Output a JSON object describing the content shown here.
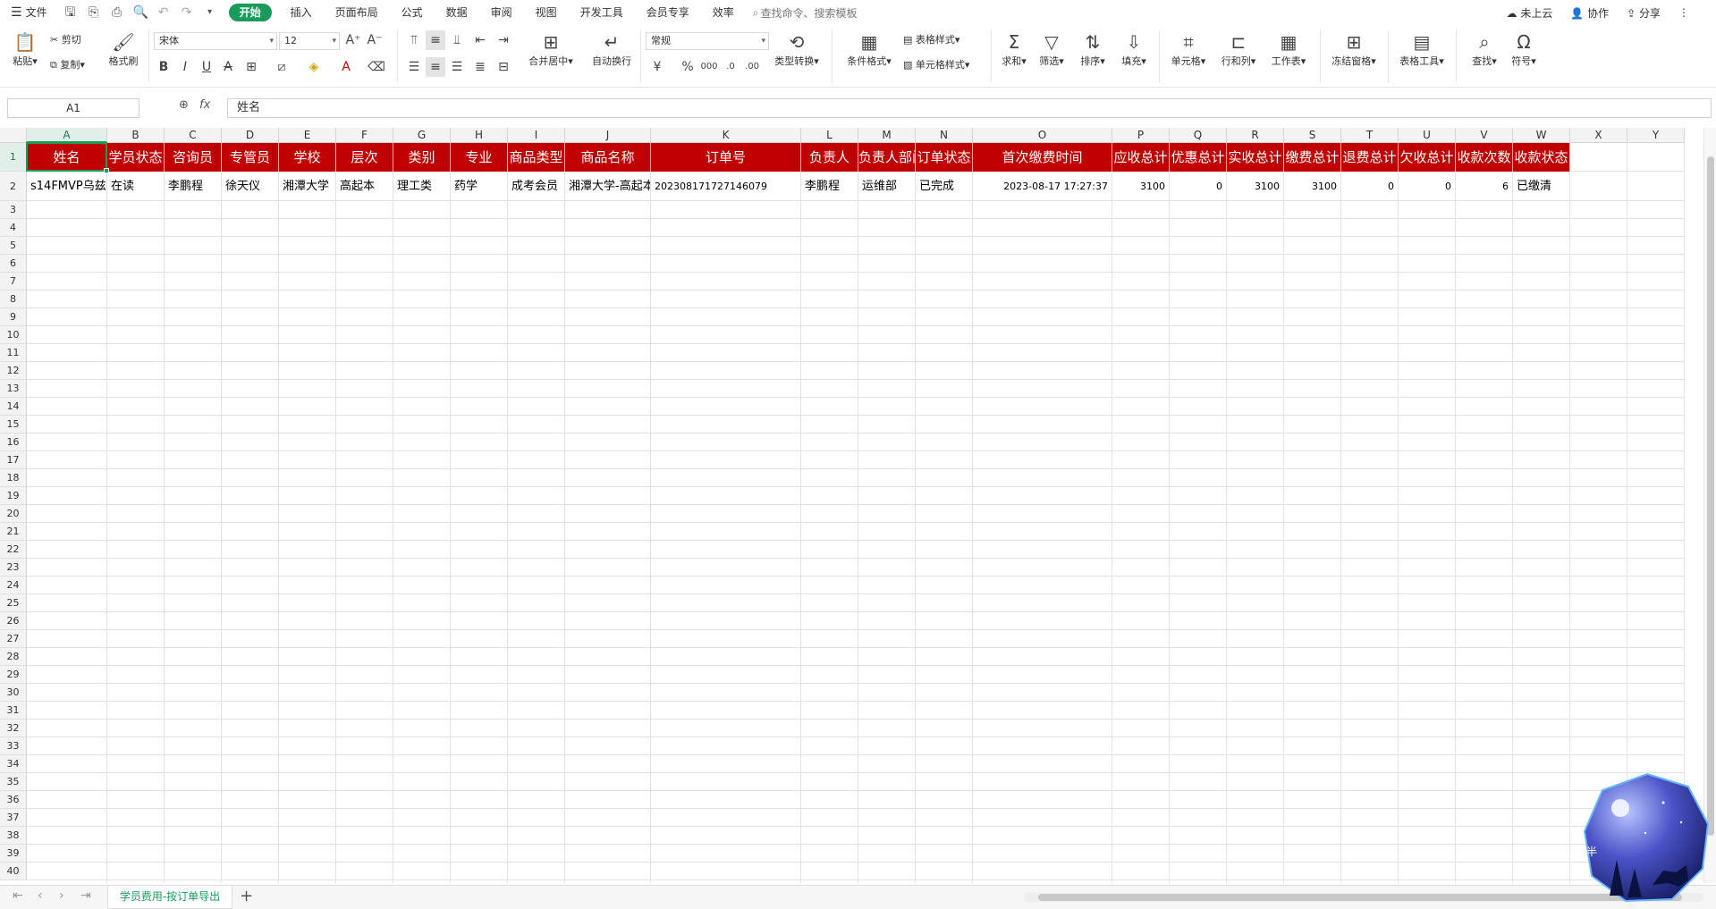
{
  "menubar": {
    "file": "文件",
    "tabs": [
      "开始",
      "插入",
      "页面布局",
      "公式",
      "数据",
      "审阅",
      "视图",
      "开发工具",
      "会员专享",
      "效率"
    ],
    "active_tab": "开始",
    "search_placeholder": "查找命令、搜索模板",
    "right": [
      "未上云",
      "协作",
      "分享"
    ]
  },
  "ribbon": {
    "paste": "粘贴",
    "cut": "剪切",
    "copy": "复制",
    "format_painter": "格式刷",
    "font_name": "宋体",
    "font_size": "12",
    "merge_center": "合并居中",
    "wrap_text": "自动换行",
    "number_format": "常规",
    "type_convert": "类型转换",
    "conditional_format": "条件格式",
    "table_style": "表格样式",
    "cell_style": "单元格样式",
    "sum": "求和",
    "filter": "筛选",
    "sort": "排序",
    "fill": "填充",
    "cell": "单元格",
    "row_col": "行和列",
    "worksheet": "工作表",
    "freeze": "冻结窗格",
    "table_tools": "表格工具",
    "find": "查找",
    "symbol": "符号"
  },
  "formulabar": {
    "cell_ref": "A1",
    "fx": "fx",
    "content": "姓名"
  },
  "columns": [
    "A",
    "B",
    "C",
    "D",
    "E",
    "F",
    "G",
    "H",
    "I",
    "J",
    "K",
    "L",
    "M",
    "N",
    "O",
    "P",
    "Q",
    "R",
    "S",
    "T",
    "U",
    "V",
    "W",
    "X",
    "Y"
  ],
  "header_row": [
    "姓名",
    "学员状态",
    "咨询员",
    "专管员",
    "学校",
    "层次",
    "类别",
    "专业",
    "商品类型",
    "商品名称",
    "订单号",
    "负责人",
    "负责人部门",
    "订单状态",
    "首次缴费时间",
    "应收总计",
    "优惠总计",
    "实收总计",
    "缴费总计",
    "退费总计",
    "欠收总计",
    "收款次数",
    "收款状态"
  ],
  "data_rows": [
    [
      "s14FMVP乌兹",
      "在读",
      "李鹏程",
      "徐天仪",
      "湘潭大学",
      "高起本",
      "理工类",
      "药学",
      "成考会员",
      "湘潭大学-高起本",
      "202308171727146079",
      "李鹏程",
      "运维部",
      "已完成",
      "2023-08-17 17:27:37",
      "3100",
      "0",
      "3100",
      "3100",
      "0",
      "0",
      "6",
      "已缴清"
    ]
  ],
  "row_numbers": [
    "1",
    "2",
    "3",
    "4",
    "5",
    "6",
    "7",
    "8",
    "9",
    "10",
    "11",
    "12",
    "13",
    "14",
    "15",
    "16",
    "17",
    "18",
    "19",
    "20",
    "21",
    "22",
    "23",
    "24",
    "25",
    "26",
    "27",
    "28",
    "29",
    "30",
    "31",
    "32",
    "33",
    "34",
    "35",
    "36",
    "37",
    "38",
    "39",
    "40"
  ],
  "sheet": {
    "tab_name": "学员费用-按订单导出"
  },
  "widget": {
    "text": "半"
  },
  "colors": {
    "accent": "#1a9b5a",
    "header_fill": "#c00000",
    "header_text": "#ffffff"
  }
}
